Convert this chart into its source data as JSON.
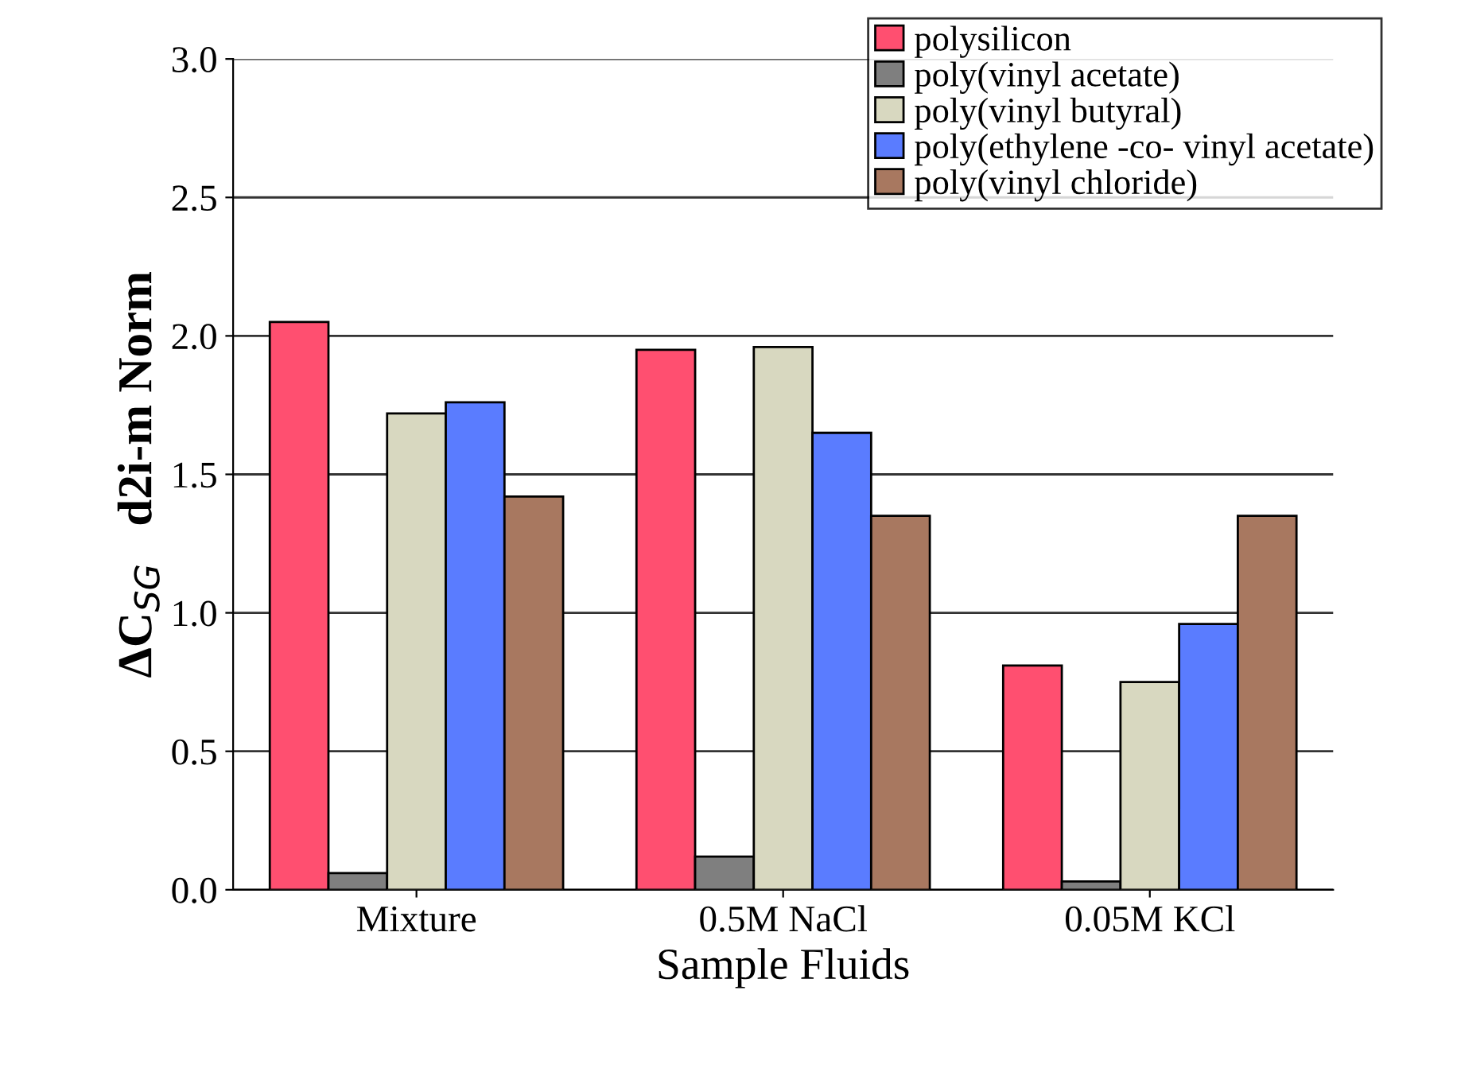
{
  "chart_data": {
    "type": "bar",
    "xlabel": "Sample Fluids",
    "ylabel": "ΔC$_{SG}$   d2i-m Norm",
    "categories": [
      "Mixture",
      "0.5M NaCl",
      "0.05M KCl"
    ],
    "series": [
      {
        "name": "polysilicon",
        "color": "#ff4f70",
        "values": [
          2.05,
          1.95,
          0.81
        ]
      },
      {
        "name": "poly(vinyl acetate)",
        "color": "#7f7f7f",
        "values": [
          0.06,
          0.12,
          0.03
        ]
      },
      {
        "name": "poly(vinyl butyral)",
        "color": "#d8d8c0",
        "values": [
          1.72,
          1.96,
          0.75
        ]
      },
      {
        "name": "poly(ethylene -co- vinyl acetate)",
        "color": "#5a7cff",
        "values": [
          1.76,
          1.65,
          0.96
        ]
      },
      {
        "name": "poly(vinyl chloride)",
        "color": "#a87860",
        "values": [
          1.42,
          1.35,
          1.35
        ]
      }
    ],
    "ylim": [
      0,
      3
    ],
    "yticks": [
      {
        "value": 0,
        "label": "0.0"
      },
      {
        "value": 0.5,
        "label": "0.5"
      },
      {
        "value": 1,
        "label": "1.0"
      },
      {
        "value": 1.5,
        "label": "1.5"
      },
      {
        "value": 2,
        "label": "2.0"
      },
      {
        "value": 2.5,
        "label": "2.5"
      },
      {
        "value": 3,
        "label": "3.0"
      }
    ],
    "grid": "y",
    "legend": "top right"
  }
}
